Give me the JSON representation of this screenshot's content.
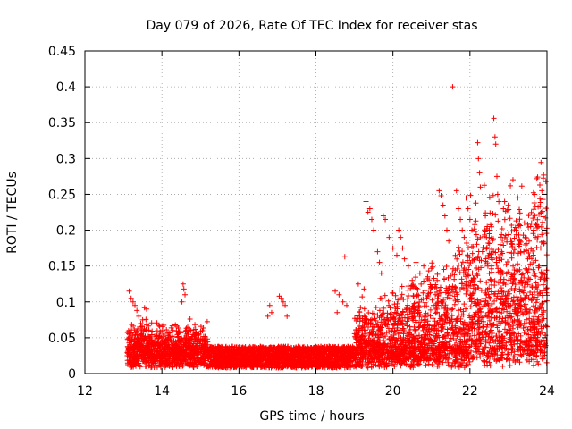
{
  "chart_data": {
    "type": "scatter",
    "title": "Day 079 of 2026, Rate Of TEC Index for receiver stas",
    "xlabel": "GPS time / hours",
    "ylabel": "ROTI / TECUs",
    "xlim": [
      12,
      24
    ],
    "ylim": [
      0,
      0.45
    ],
    "xticks": [
      12,
      14,
      16,
      18,
      20,
      22,
      24
    ],
    "yticks": [
      0,
      0.05,
      0.1,
      0.15,
      0.2,
      0.25,
      0.3,
      0.35,
      0.4,
      0.45
    ],
    "xtick_labels": [
      "12",
      "14",
      "16",
      "18",
      "20",
      "22",
      "24"
    ],
    "ytick_labels": [
      "0",
      "0.05",
      "0.1",
      "0.15",
      "0.2",
      "0.25",
      "0.3",
      "0.35",
      "0.4",
      "0.45"
    ],
    "grid": true,
    "marker": "+",
    "marker_color": "#ff0000",
    "series": [
      {
        "name": "ROTI",
        "points": [
          [
            13.15,
            0.115
          ],
          [
            13.2,
            0.105
          ],
          [
            13.25,
            0.1
          ],
          [
            13.3,
            0.095
          ],
          [
            13.35,
            0.088
          ],
          [
            13.4,
            0.08
          ],
          [
            13.45,
            0.07
          ],
          [
            13.55,
            0.092
          ],
          [
            13.6,
            0.09
          ],
          [
            13.5,
            0.075
          ],
          [
            14.55,
            0.125
          ],
          [
            14.57,
            0.118
          ],
          [
            14.6,
            0.11
          ],
          [
            14.52,
            0.1
          ],
          [
            16.8,
            0.095
          ],
          [
            16.85,
            0.085
          ],
          [
            16.75,
            0.08
          ],
          [
            17.05,
            0.108
          ],
          [
            17.1,
            0.105
          ],
          [
            17.15,
            0.1
          ],
          [
            17.2,
            0.095
          ],
          [
            17.25,
            0.08
          ],
          [
            18.5,
            0.115
          ],
          [
            18.6,
            0.11
          ],
          [
            18.7,
            0.1
          ],
          [
            18.8,
            0.095
          ],
          [
            18.55,
            0.085
          ],
          [
            18.75,
            0.163
          ],
          [
            19.1,
            0.125
          ],
          [
            19.25,
            0.118
          ],
          [
            19.2,
            0.107
          ],
          [
            19.3,
            0.24
          ],
          [
            19.35,
            0.225
          ],
          [
            19.4,
            0.23
          ],
          [
            19.45,
            0.215
          ],
          [
            19.5,
            0.2
          ],
          [
            19.6,
            0.17
          ],
          [
            19.65,
            0.155
          ],
          [
            19.7,
            0.14
          ],
          [
            19.75,
            0.22
          ],
          [
            19.8,
            0.215
          ],
          [
            19.9,
            0.19
          ],
          [
            20.0,
            0.175
          ],
          [
            20.1,
            0.165
          ],
          [
            20.15,
            0.2
          ],
          [
            20.2,
            0.19
          ],
          [
            20.25,
            0.175
          ],
          [
            20.3,
            0.16
          ],
          [
            20.4,
            0.15
          ],
          [
            20.5,
            0.13
          ],
          [
            20.6,
            0.155
          ],
          [
            20.7,
            0.14
          ],
          [
            20.8,
            0.15
          ],
          [
            20.9,
            0.135
          ],
          [
            21.0,
            0.12
          ],
          [
            21.1,
            0.11
          ],
          [
            21.2,
            0.255
          ],
          [
            21.25,
            0.248
          ],
          [
            21.3,
            0.235
          ],
          [
            21.35,
            0.22
          ],
          [
            21.4,
            0.2
          ],
          [
            21.45,
            0.185
          ],
          [
            21.55,
            0.4
          ],
          [
            21.65,
            0.255
          ],
          [
            21.7,
            0.23
          ],
          [
            21.75,
            0.215
          ],
          [
            21.8,
            0.2
          ],
          [
            21.85,
            0.19
          ],
          [
            21.9,
            0.245
          ],
          [
            21.95,
            0.23
          ],
          [
            22.0,
            0.215
          ],
          [
            22.05,
            0.2
          ],
          [
            22.2,
            0.322
          ],
          [
            22.22,
            0.3
          ],
          [
            22.25,
            0.28
          ],
          [
            22.27,
            0.26
          ],
          [
            22.4,
            0.22
          ],
          [
            22.45,
            0.205
          ],
          [
            22.5,
            0.19
          ],
          [
            22.62,
            0.356
          ],
          [
            22.65,
            0.33
          ],
          [
            22.67,
            0.32
          ],
          [
            22.7,
            0.275
          ],
          [
            22.72,
            0.25
          ],
          [
            22.75,
            0.24
          ],
          [
            22.9,
            0.24
          ],
          [
            23.05,
            0.262
          ],
          [
            23.2,
            0.2
          ],
          [
            23.3,
            0.185
          ],
          [
            23.4,
            0.17
          ],
          [
            23.5,
            0.16
          ],
          [
            23.6,
            0.21
          ],
          [
            23.65,
            0.2
          ],
          [
            23.7,
            0.19
          ],
          [
            23.8,
            0.15
          ],
          [
            23.9,
            0.14
          ],
          [
            23.95,
            0.13
          ]
        ]
      }
    ]
  }
}
